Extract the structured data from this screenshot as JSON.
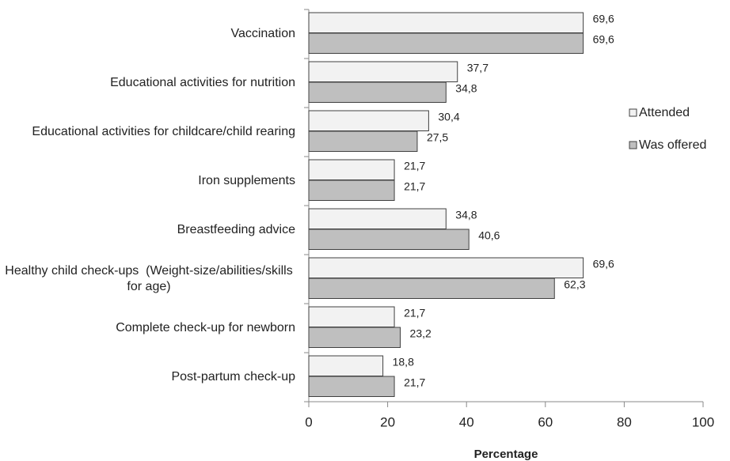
{
  "chart_data": {
    "type": "hbar",
    "xlabel": "Percentage",
    "categories": [
      "Vaccination",
      "Educational activities for nutrition",
      "Educational activities for childcare/child rearing",
      "Iron supplements",
      "Breastfeeding advice",
      "Healthy child check-ups  (Weight-size/abilities/skills for age)",
      "Complete check-up for newborn",
      "Post-partum check-up"
    ],
    "series": [
      {
        "name": "Attended",
        "color": "#f2f2f2",
        "values": [
          69.6,
          37.7,
          30.4,
          21.7,
          34.8,
          69.6,
          21.7,
          18.8
        ],
        "value_labels": [
          "69,6",
          "37,7",
          "30,4",
          "21,7",
          "34,8",
          "69,6",
          "21,7",
          "18,8"
        ]
      },
      {
        "name": "Was offered",
        "color": "#bfbfbf",
        "values": [
          69.6,
          34.8,
          27.5,
          21.7,
          40.6,
          62.3,
          23.2,
          21.7
        ],
        "value_labels": [
          "69,6",
          "34,8",
          "27,5",
          "21,7",
          "40,6",
          "62,3",
          "23,2",
          "21,7"
        ]
      }
    ],
    "xlim": [
      0,
      100
    ],
    "xticks": [
      0,
      20,
      40,
      60,
      80,
      100
    ],
    "legend": "right"
  }
}
